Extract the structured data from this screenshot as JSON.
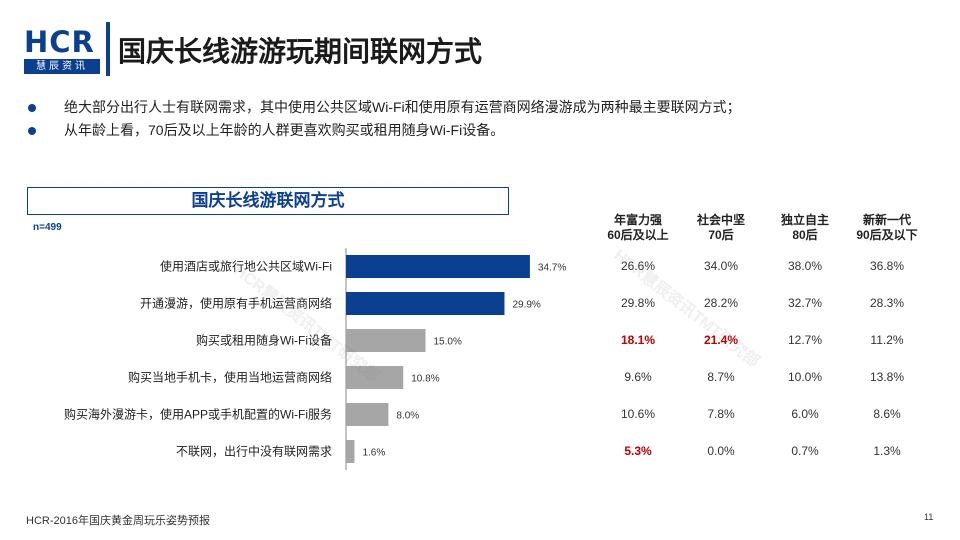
{
  "logo": {
    "text": "HCR",
    "sub": "慧辰资讯"
  },
  "page_title": "国庆长线游游玩期间联网方式",
  "bullets": [
    "绝大部分出行人士有联网需求，其中使用公共区域Wi-Fi和使用原有运营商网络漫游成为两种最主要联网方式；",
    "从年龄上看，70后及以上年龄的人群更喜欢购买或租用随身Wi-Fi设备。"
  ],
  "watermarks": [
    "HCR慧辰资讯TMT研究部",
    "HCR慧辰资讯TMT研究部"
  ],
  "chart_data": {
    "type": "bar",
    "orientation": "horizontal",
    "title": "国庆长线游联网方式",
    "sample": "n=499",
    "categories": [
      "使用酒店或旅行地公共区域Wi-Fi",
      "开通漫游，使用原有手机运营商网络",
      "购买或租用随身Wi-Fi设备",
      "购买当地手机卡，使用当地运营商网络",
      "购买海外漫游卡，使用APP或手机配置的Wi-Fi服务",
      "不联网，出行中没有联网需求"
    ],
    "values": [
      34.7,
      29.9,
      15.0,
      10.8,
      8.0,
      1.6
    ],
    "value_labels": [
      "34.7%",
      "29.9%",
      "15.0%",
      "10.8%",
      "8.0%",
      "1.6%"
    ],
    "bar_colors": [
      "#0b3f8f",
      "#0b3f8f",
      "#a6a6a6",
      "#a6a6a6",
      "#a6a6a6",
      "#a6a6a6"
    ],
    "xlim": [
      0,
      40
    ],
    "table": {
      "columns": [
        {
          "line1": "年富力强",
          "line2": "60后及以上"
        },
        {
          "line1": "社会中坚",
          "line2": "70后"
        },
        {
          "line1": "独立自主",
          "line2": "80后"
        },
        {
          "line1": "新新一代",
          "line2": "90后及以下"
        }
      ],
      "rows": [
        [
          "26.6%",
          "34.0%",
          "38.0%",
          "36.8%"
        ],
        [
          "29.8%",
          "28.2%",
          "32.7%",
          "28.3%"
        ],
        [
          "18.1%",
          "21.4%",
          "12.7%",
          "11.2%"
        ],
        [
          "9.6%",
          "8.7%",
          "10.0%",
          "13.8%"
        ],
        [
          "10.6%",
          "7.8%",
          "6.0%",
          "8.6%"
        ],
        [
          "5.3%",
          "0.0%",
          "0.7%",
          "1.3%"
        ]
      ],
      "highlight_color": "#c00000",
      "highlights": [
        [
          2,
          0
        ],
        [
          2,
          1
        ],
        [
          5,
          0
        ]
      ]
    }
  },
  "footer": "HCR-2016年国庆黄金周玩乐姿势预报",
  "page_number": "11"
}
